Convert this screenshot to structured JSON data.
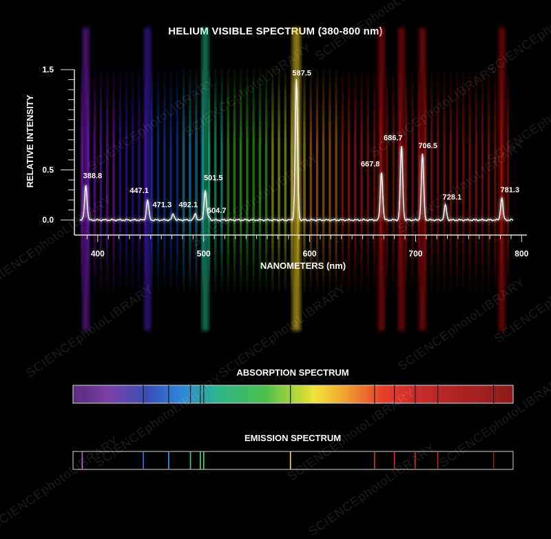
{
  "chart_data": {
    "type": "line",
    "title": "HELIUM VISIBLE SPECTRUM (380-800 nm)",
    "xlabel": "NANOMETERS (nm)",
    "ylabel": "RELATIVE INTENSITY",
    "xlim": [
      378,
      805
    ],
    "ylim": [
      -0.15,
      1.5
    ],
    "x_ticks": [
      400,
      500,
      600,
      700,
      800
    ],
    "y_ticks": [
      0.0,
      0.5,
      1.5
    ],
    "y_tick_labels": [
      "0.0",
      "0.5",
      "1.5"
    ],
    "series": [
      {
        "peaks": [
          {
            "x": 388.8,
            "y": 0.35,
            "label": "388.8"
          },
          {
            "x": 447.1,
            "y": 0.2,
            "label": "447.1"
          },
          {
            "x": 471.3,
            "y": 0.06,
            "label": "471.3"
          },
          {
            "x": 492.1,
            "y": 0.06,
            "label": "492.1"
          },
          {
            "x": 501.5,
            "y": 0.3,
            "label": "501.5"
          },
          {
            "x": 504.7,
            "y": 0.03,
            "label": "504.7"
          },
          {
            "x": 587.5,
            "y": 1.4,
            "label": "587.5"
          },
          {
            "x": 667.8,
            "y": 0.48,
            "label": "667.8"
          },
          {
            "x": 686.7,
            "y": 0.74,
            "label": "686.7"
          },
          {
            "x": 706.5,
            "y": 0.66,
            "label": "706.5"
          },
          {
            "x": 728.1,
            "y": 0.15,
            "label": "728.1"
          },
          {
            "x": 781.3,
            "y": 0.22,
            "label": "781.3"
          }
        ]
      }
    ],
    "grid": false
  },
  "absorption": {
    "title": "ABSORPTION SPECTRUM",
    "lines_nm": [
      447.1,
      471.3,
      492.1,
      501.5,
      504.7,
      587.5,
      667.8,
      686.7,
      706.5,
      728.1,
      781.3
    ]
  },
  "emission": {
    "title": "EMISSION SPECTRUM",
    "lines": [
      {
        "nm": 388.8,
        "color": "#b46ad6"
      },
      {
        "nm": 447.1,
        "color": "#4a6bff"
      },
      {
        "nm": 471.3,
        "color": "#3aa6ff"
      },
      {
        "nm": 492.1,
        "color": "#3ad3a0"
      },
      {
        "nm": 501.5,
        "color": "#45e07a"
      },
      {
        "nm": 504.7,
        "color": "#5ee05a"
      },
      {
        "nm": 587.5,
        "color": "#ffe04a"
      },
      {
        "nm": 667.8,
        "color": "#e03030"
      },
      {
        "nm": 686.7,
        "color": "#d83030"
      },
      {
        "nm": 706.5,
        "color": "#c82c2c"
      },
      {
        "nm": 728.1,
        "color": "#b82828"
      },
      {
        "nm": 781.3,
        "color": "#9c2424"
      }
    ]
  },
  "watermark": "SCIENCEphotoLIBRARY"
}
